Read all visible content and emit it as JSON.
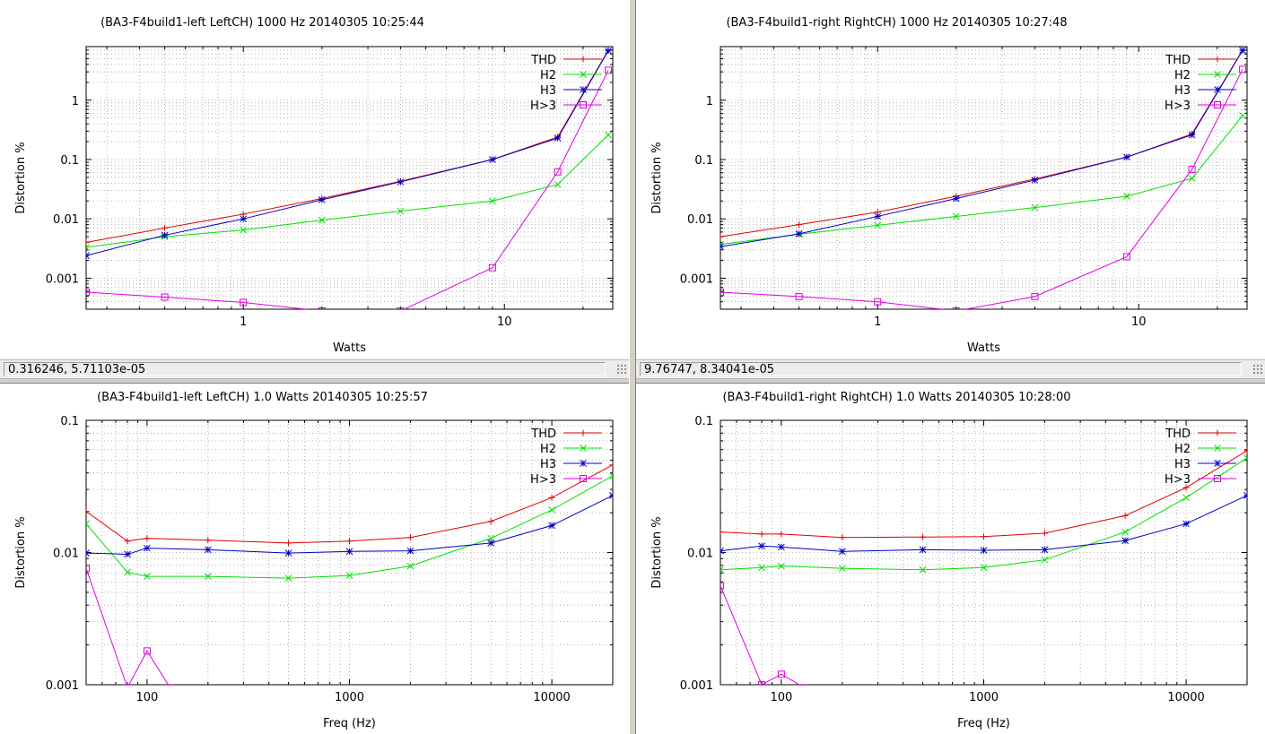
{
  "panels": [
    {
      "status": "0.316246,  5.71103e-05",
      "chart_data": {
        "type": "line",
        "title": "(BA3-F4build1-left LeftCH) 1000 Hz 20140305 10:25:44",
        "xlabel": "Watts",
        "ylabel": "Distortion %",
        "xscale": "log",
        "yscale": "log",
        "xlim": [
          0.25,
          26
        ],
        "ylim": [
          0.0003,
          8
        ],
        "xticks": [
          1,
          10
        ],
        "xtick_labels": [
          "1",
          "10"
        ],
        "yticks": [
          0.001,
          0.01,
          0.1,
          1
        ],
        "ytick_labels": [
          "0.001",
          "0.01",
          "0.1",
          "1"
        ],
        "grid": true,
        "legend": "top-right",
        "series": [
          {
            "name": "THD",
            "color": "#e00000",
            "marker": "plus",
            "x": [
              0.25,
              0.5,
              1,
              2,
              4,
              9,
              16,
              25
            ],
            "y": [
              0.004,
              0.007,
              0.012,
              0.022,
              0.043,
              0.1,
              0.24,
              7
            ]
          },
          {
            "name": "H2",
            "color": "#00e000",
            "marker": "cross",
            "x": [
              0.25,
              0.5,
              1,
              2,
              4,
              9,
              16,
              25
            ],
            "y": [
              0.0033,
              0.005,
              0.0065,
              0.0095,
              0.0135,
              0.02,
              0.038,
              0.26
            ]
          },
          {
            "name": "H3",
            "color": "#0000c0",
            "marker": "star",
            "x": [
              0.25,
              0.5,
              1,
              2,
              4,
              9,
              16,
              25
            ],
            "y": [
              0.0024,
              0.0053,
              0.01,
              0.021,
              0.042,
              0.1,
              0.23,
              6.8
            ]
          },
          {
            "name": "H>3",
            "color": "#e000e0",
            "marker": "square",
            "x": [
              0.25,
              0.5,
              1,
              2,
              4,
              9,
              16,
              25
            ],
            "y": [
              0.00058,
              0.00048,
              0.00039,
              0.00028,
              0.00028,
              0.0015,
              0.062,
              3.2
            ]
          }
        ]
      }
    },
    {
      "status": "9.76747,  8.34041e-05",
      "chart_data": {
        "type": "line",
        "title": "(BA3-F4build1-right RightCH) 1000 Hz 20140305 10:27:48",
        "xlabel": "Watts",
        "ylabel": "Distortion %",
        "xscale": "log",
        "yscale": "log",
        "xlim": [
          0.25,
          26
        ],
        "ylim": [
          0.0003,
          8
        ],
        "xticks": [
          1,
          10
        ],
        "xtick_labels": [
          "1",
          "10"
        ],
        "yticks": [
          0.001,
          0.01,
          0.1,
          1
        ],
        "ytick_labels": [
          "0.001",
          "0.01",
          "0.1",
          "1"
        ],
        "grid": true,
        "legend": "top-right",
        "series": [
          {
            "name": "THD",
            "color": "#e00000",
            "marker": "plus",
            "x": [
              0.25,
              0.5,
              1,
              2,
              4,
              9,
              16,
              25
            ],
            "y": [
              0.005,
              0.008,
              0.013,
              0.024,
              0.047,
              0.11,
              0.27,
              7
            ]
          },
          {
            "name": "H2",
            "color": "#00e000",
            "marker": "cross",
            "x": [
              0.25,
              0.5,
              1,
              2,
              4,
              9,
              16,
              25
            ],
            "y": [
              0.0037,
              0.0055,
              0.0078,
              0.011,
              0.0155,
              0.024,
              0.048,
              0.55
            ]
          },
          {
            "name": "H3",
            "color": "#0000c0",
            "marker": "star",
            "x": [
              0.25,
              0.5,
              1,
              2,
              4,
              9,
              16,
              25
            ],
            "y": [
              0.0034,
              0.0056,
              0.011,
              0.022,
              0.045,
              0.11,
              0.26,
              6.9
            ]
          },
          {
            "name": "H>3",
            "color": "#e000e0",
            "marker": "square",
            "x": [
              0.25,
              0.5,
              1,
              2,
              4,
              9,
              16,
              25
            ],
            "y": [
              0.00058,
              0.00049,
              0.0004,
              0.00028,
              0.00049,
              0.0023,
              0.068,
              3.3
            ]
          }
        ]
      }
    },
    {
      "chart_data": {
        "type": "line",
        "title": "(BA3-F4build1-left LeftCH) 1.0 Watts 20140305 10:25:57",
        "xlabel": "Freq (Hz)",
        "ylabel": "Distortion %",
        "xscale": "log",
        "yscale": "log",
        "xlim": [
          50,
          20000
        ],
        "ylim": [
          0.001,
          0.1
        ],
        "xticks": [
          100,
          1000,
          10000
        ],
        "xtick_labels": [
          "100",
          "1000",
          "10000"
        ],
        "yticks": [
          0.001,
          0.01,
          0.1
        ],
        "ytick_labels": [
          "0.001",
          "0.01",
          "0.1"
        ],
        "grid": true,
        "legend": "top-right",
        "series": [
          {
            "name": "THD",
            "color": "#e00000",
            "marker": "plus",
            "x": [
              50,
              80,
              100,
              200,
              500,
              1000,
              2000,
              5000,
              10000,
              20000
            ],
            "y": [
              0.0205,
              0.0122,
              0.0128,
              0.0124,
              0.0118,
              0.0122,
              0.013,
              0.0172,
              0.026,
              0.046
            ]
          },
          {
            "name": "H2",
            "color": "#00e000",
            "marker": "cross",
            "x": [
              50,
              80,
              100,
              200,
              500,
              1000,
              2000,
              5000,
              10000,
              20000
            ],
            "y": [
              0.0165,
              0.0071,
              0.0066,
              0.0066,
              0.0064,
              0.0067,
              0.0079,
              0.0128,
              0.021,
              0.038
            ]
          },
          {
            "name": "H3",
            "color": "#0000c0",
            "marker": "star",
            "x": [
              50,
              80,
              100,
              200,
              500,
              1000,
              2000,
              5000,
              10000,
              20000
            ],
            "y": [
              0.0099,
              0.0097,
              0.0108,
              0.0105,
              0.0099,
              0.0102,
              0.0103,
              0.0118,
              0.016,
              0.027
            ]
          },
          {
            "name": "H>3",
            "color": "#e000e0",
            "marker": "square",
            "x": [
              50,
              80,
              100,
              130
            ],
            "y": [
              0.0076,
              0.00095,
              0.0018,
              0.00095
            ]
          }
        ]
      }
    },
    {
      "chart_data": {
        "type": "line",
        "title": "(BA3-F4build1-right RightCH) 1.0 Watts 20140305 10:28:00",
        "xlabel": "Freq (Hz)",
        "ylabel": "Distortion %",
        "xscale": "log",
        "yscale": "log",
        "xlim": [
          50,
          20000
        ],
        "ylim": [
          0.001,
          0.1
        ],
        "xticks": [
          100,
          1000,
          10000
        ],
        "xtick_labels": [
          "100",
          "1000",
          "10000"
        ],
        "yticks": [
          0.001,
          0.01,
          0.1
        ],
        "ytick_labels": [
          "0.001",
          "0.01",
          "0.1"
        ],
        "grid": true,
        "legend": "top-right",
        "series": [
          {
            "name": "THD",
            "color": "#e00000",
            "marker": "plus",
            "x": [
              50,
              80,
              100,
              200,
              500,
              1000,
              2000,
              5000,
              10000,
              20000
            ],
            "y": [
              0.0143,
              0.0138,
              0.0138,
              0.013,
              0.0131,
              0.0132,
              0.014,
              0.019,
              0.031,
              0.059
            ]
          },
          {
            "name": "H2",
            "color": "#00e000",
            "marker": "cross",
            "x": [
              50,
              80,
              100,
              200,
              500,
              1000,
              2000,
              5000,
              10000,
              20000
            ],
            "y": [
              0.0074,
              0.0077,
              0.0079,
              0.0076,
              0.0074,
              0.0077,
              0.0088,
              0.0143,
              0.026,
              0.052
            ]
          },
          {
            "name": "H3",
            "color": "#0000c0",
            "marker": "star",
            "x": [
              50,
              80,
              100,
              200,
              500,
              1000,
              2000,
              5000,
              10000,
              20000
            ],
            "y": [
              0.0103,
              0.0112,
              0.011,
              0.0102,
              0.0105,
              0.0104,
              0.0105,
              0.0123,
              0.0165,
              0.027
            ]
          },
          {
            "name": "H>3",
            "color": "#e000e0",
            "marker": "square",
            "x": [
              50,
              80,
              100,
              130
            ],
            "y": [
              0.0056,
              0.001,
              0.0012,
              0.00095
            ]
          }
        ]
      }
    }
  ]
}
